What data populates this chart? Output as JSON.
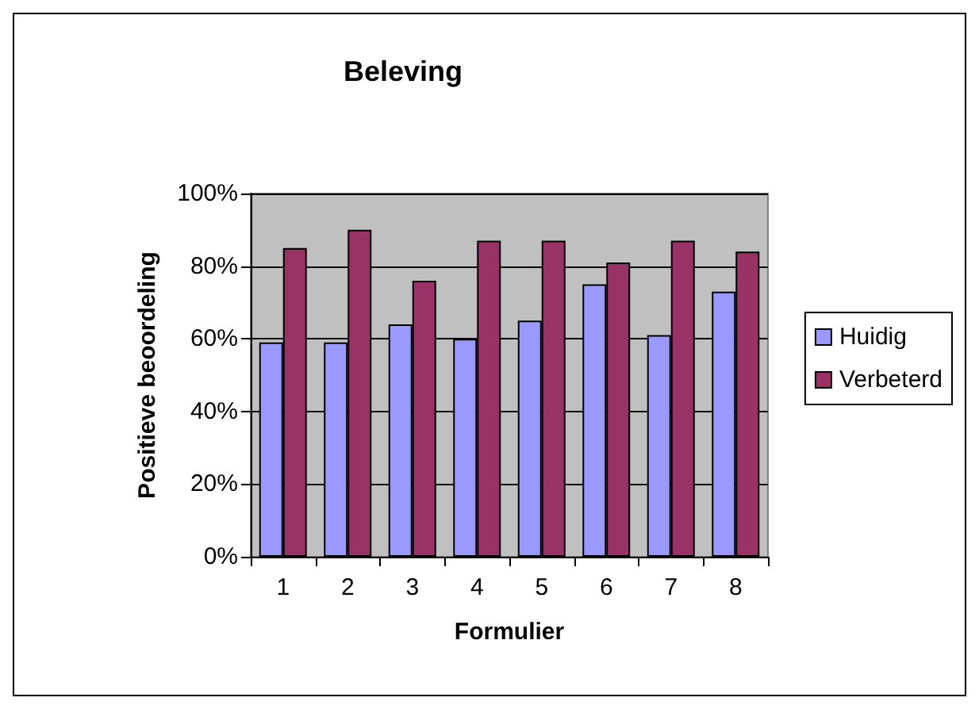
{
  "chart_data": {
    "type": "bar",
    "title": "Beleving",
    "xlabel": "Formulier",
    "ylabel": "Positieve beoordeling",
    "categories": [
      "1",
      "2",
      "3",
      "4",
      "5",
      "6",
      "7",
      "8"
    ],
    "series": [
      {
        "name": "Huidig",
        "color": "#9999ff",
        "values": [
          59,
          59,
          64,
          60,
          65,
          75,
          61,
          73
        ]
      },
      {
        "name": "Verbeterd",
        "color": "#993366",
        "values": [
          85,
          90,
          76,
          87,
          87,
          81,
          87,
          84
        ]
      }
    ],
    "ylim": [
      0,
      100
    ],
    "yticks": [
      {
        "value": 0,
        "label": "0%"
      },
      {
        "value": 20,
        "label": "20%"
      },
      {
        "value": 40,
        "label": "40%"
      },
      {
        "value": 60,
        "label": "60%"
      },
      {
        "value": 80,
        "label": "80%"
      },
      {
        "value": 100,
        "label": "100%"
      }
    ],
    "grid": "y",
    "legend": "right"
  }
}
